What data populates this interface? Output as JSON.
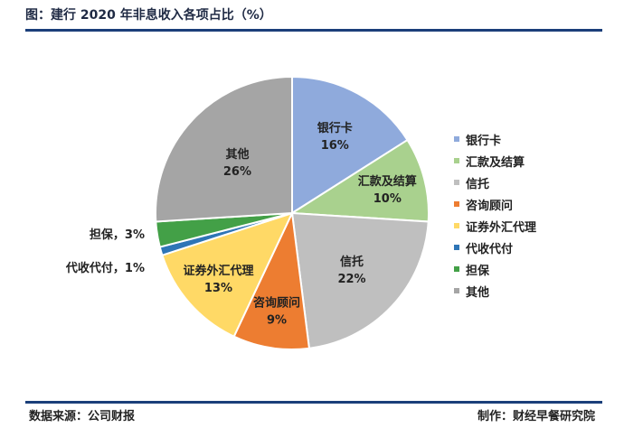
{
  "header": {
    "title": "图：建行 2020 年非息收入各项占比（%）"
  },
  "footer": {
    "source": "数据来源：公司财报",
    "maker": "制作：财经早餐研究院"
  },
  "chart_data": {
    "type": "pie",
    "title": "图：建行 2020 年非息收入各项占比（%）",
    "legend_position": "right",
    "slices": [
      {
        "name": "银行卡",
        "value": 16,
        "label": "16%",
        "color": "#8faadc"
      },
      {
        "name": "汇款及结算",
        "value": 10,
        "label": "10%",
        "color": "#a9d18e"
      },
      {
        "name": "信托",
        "value": 22,
        "label": "22%",
        "color": "#bfbfbf"
      },
      {
        "name": "咨询顾问",
        "value": 9,
        "label": "9%",
        "color": "#ed7d31"
      },
      {
        "name": "证券外汇代理",
        "value": 13,
        "label": "13%",
        "color": "#ffd966"
      },
      {
        "name": "代收代付",
        "value": 1,
        "label": "1%",
        "color": "#2e75b6"
      },
      {
        "name": "担保",
        "value": 3,
        "label": "3%",
        "color": "#43a047"
      },
      {
        "name": "其他",
        "value": 26,
        "label": "26%",
        "color": "#a5a5a5"
      }
    ]
  }
}
